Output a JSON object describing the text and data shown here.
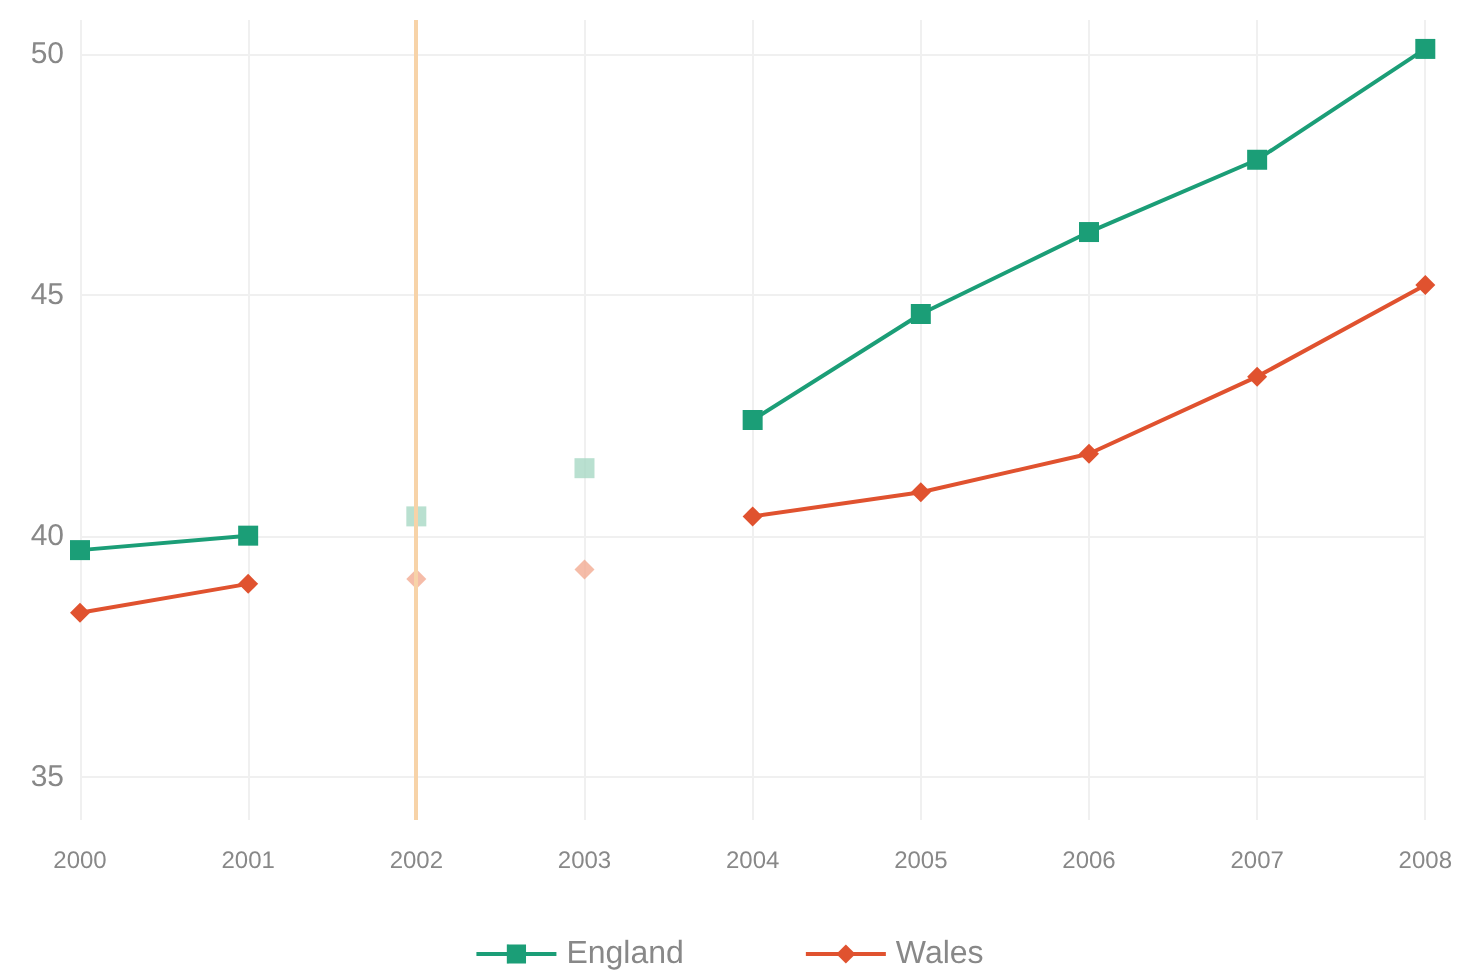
{
  "chart_data": {
    "type": "line",
    "categories": [
      "2000",
      "2001",
      "2002",
      "2003",
      "2004",
      "2005",
      "2006",
      "2007",
      "2008"
    ],
    "series": [
      {
        "name": "England",
        "color": "#1b9e77",
        "marker": "square",
        "values": [
          39.7,
          40.0,
          null,
          null,
          42.4,
          44.6,
          46.3,
          47.8,
          50.1
        ]
      },
      {
        "name": "Wales",
        "color": "#e0522f",
        "marker": "diamond",
        "values": [
          38.4,
          39.0,
          null,
          null,
          40.4,
          40.9,
          41.7,
          43.3,
          45.2
        ]
      },
      {
        "type": "scatter",
        "color": "#a8d8c4",
        "marker": "square",
        "values": [
          null,
          null,
          40.4,
          41.4,
          null,
          null,
          null,
          null,
          null
        ]
      },
      {
        "type": "scatter",
        "color": "#f2ab92",
        "marker": "diamond",
        "values": [
          null,
          null,
          39.1,
          39.3,
          null,
          null,
          null,
          null,
          null
        ]
      }
    ],
    "ylim": [
      34.1,
      50.7
    ],
    "yticks": [
      35,
      40,
      45,
      50
    ],
    "grid": true,
    "legend": "bottom",
    "line_style": "solid",
    "ref_lines": [
      {
        "axis": "x",
        "value": "2002",
        "color": "#f7d3a8"
      }
    ]
  }
}
